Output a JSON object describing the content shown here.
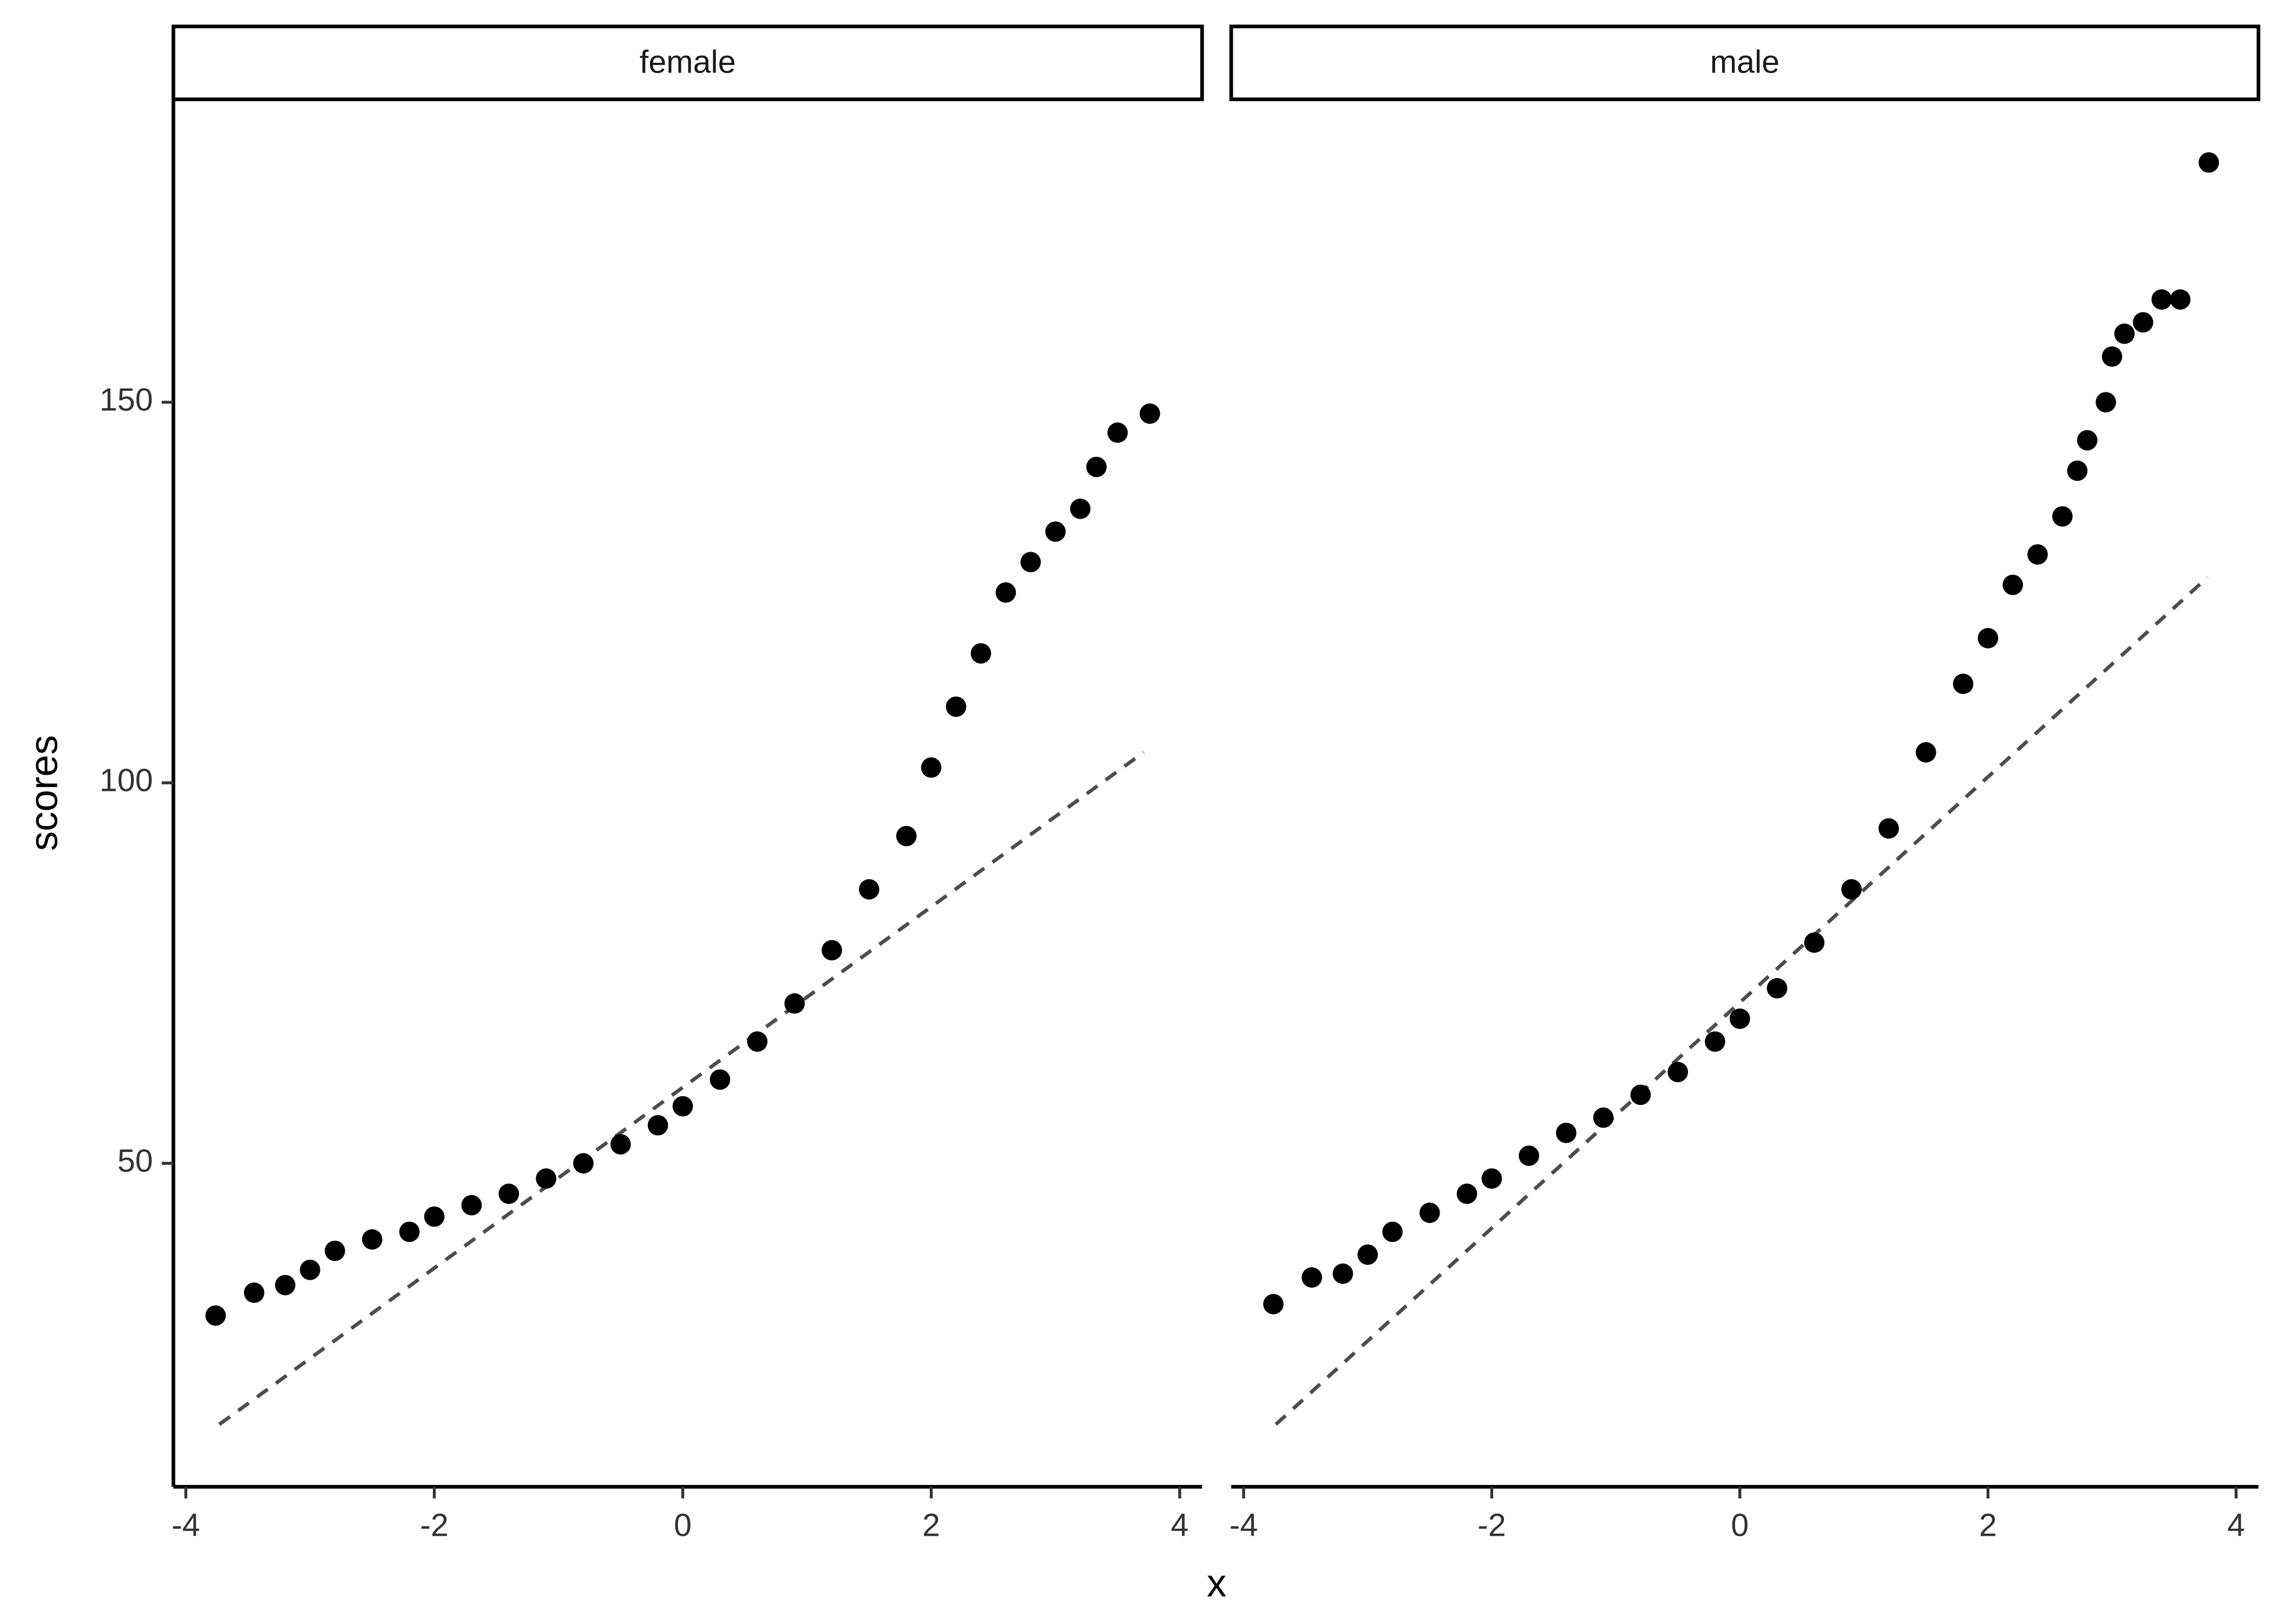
{
  "x_label": "x",
  "y_label": "scores",
  "chart_data": [
    {
      "type": "scatter",
      "title": "female",
      "xlim": [
        -4.1,
        4.18
      ],
      "ylim": [
        7.5,
        189.8
      ],
      "xticks": [
        -4,
        -2,
        0,
        2,
        4
      ],
      "yticks": [
        50,
        100,
        150
      ],
      "color": "#000000",
      "points": {
        "x": [
          -3.76,
          -3.45,
          -3.2,
          -3.0,
          -2.8,
          -2.5,
          -2.2,
          -2.0,
          -1.7,
          -1.4,
          -1.1,
          -0.8,
          -0.5,
          -0.2,
          0,
          0.3,
          0.6,
          0.9,
          1.2,
          1.5,
          1.8,
          2.0,
          2.2,
          2.4,
          2.6,
          2.8,
          3.0,
          3.2,
          3.33,
          3.5,
          3.76
        ],
        "values": [
          30,
          33,
          34,
          36,
          38.5,
          40,
          41,
          43,
          44.5,
          46,
          48,
          50,
          52.5,
          55,
          57.5,
          61,
          66,
          71,
          78,
          86,
          93,
          102,
          110,
          117,
          125,
          129,
          133,
          136,
          141.5,
          146,
          148.5
        ]
      },
      "reference_line": {
        "x": [
          -3.73,
          3.71
        ],
        "values": [
          15.7,
          104
        ],
        "color": "#4d4d4d"
      }
    },
    {
      "type": "scatter",
      "title": "male",
      "xlim": [
        -4.1,
        4.18
      ],
      "ylim": [
        7.5,
        189.8
      ],
      "xticks": [
        -4,
        -2,
        0,
        2,
        4
      ],
      "color": "#000000",
      "points": {
        "x": [
          -3.76,
          -3.45,
          -3.2,
          -3.0,
          -2.8,
          -2.5,
          -2.2,
          -2.0,
          -1.7,
          -1.4,
          -1.1,
          -0.8,
          -0.5,
          -0.2,
          0,
          0.3,
          0.6,
          0.9,
          1.2,
          1.5,
          1.8,
          2.0,
          2.2,
          2.4,
          2.6,
          2.72,
          2.8,
          2.95,
          3.0,
          3.1,
          3.25,
          3.4,
          3.55,
          3.78
        ],
        "values": [
          31.5,
          35,
          35.5,
          38,
          41,
          43.5,
          46,
          48,
          51,
          54,
          56,
          59,
          62,
          66,
          69,
          73,
          79,
          86,
          94,
          104,
          113,
          119,
          126,
          130,
          135,
          141,
          145,
          150,
          156,
          159,
          160.5,
          163.5,
          163.5,
          181.5
        ]
      },
      "reference_line": {
        "x": [
          -3.74,
          3.77
        ],
        "values": [
          15.7,
          127
        ],
        "color": "#4d4d4d"
      }
    }
  ]
}
